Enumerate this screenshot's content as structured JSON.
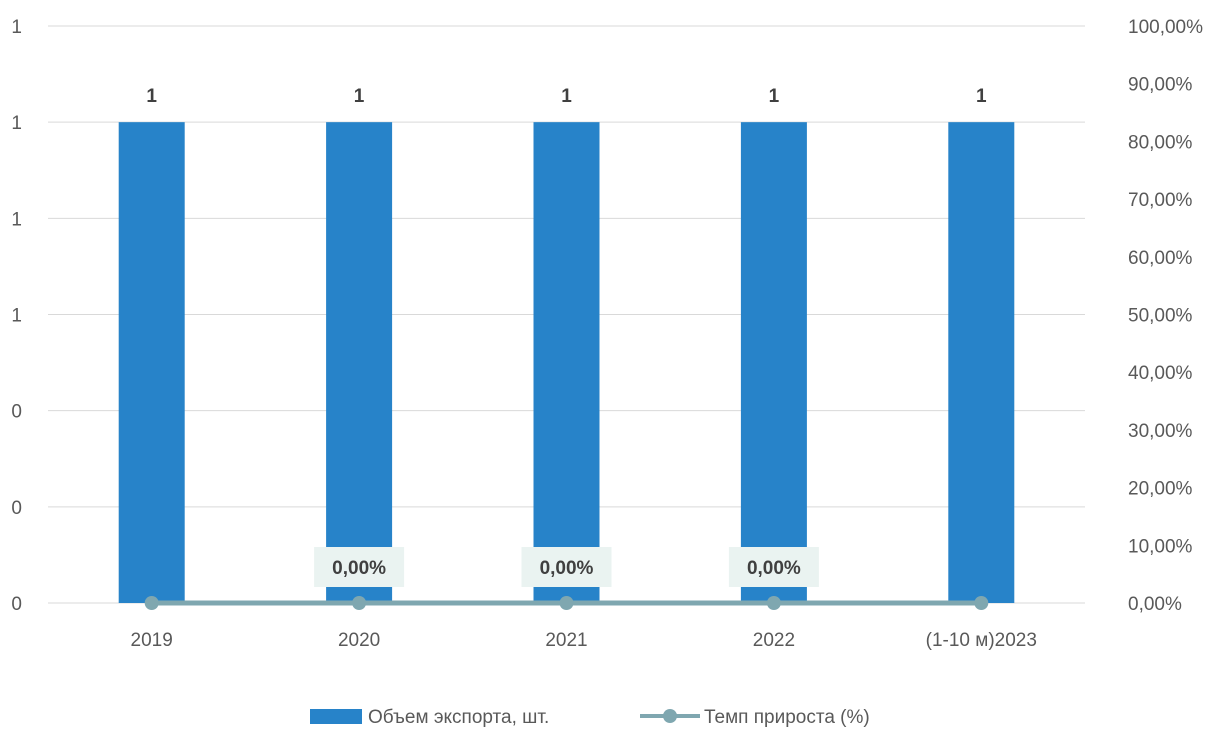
{
  "chart_data": {
    "type": "bar",
    "categories": [
      "2019",
      "2020",
      "2021",
      "2022",
      "(1-10 м)2023"
    ],
    "series": [
      {
        "name": "Объем экспорта, шт.",
        "type": "bar",
        "axis": "left",
        "values": [
          1,
          1,
          1,
          1,
          1
        ],
        "data_labels": [
          "1",
          "1",
          "1",
          "1",
          "1"
        ],
        "color": "#2783C9"
      },
      {
        "name": "Темп прироста (%)",
        "type": "line",
        "axis": "right",
        "values": [
          0,
          0,
          0,
          0,
          0
        ],
        "data_labels": [
          "",
          "0,00%",
          "0,00%",
          "0,00%",
          ""
        ],
        "color": "#7FA7B0"
      }
    ],
    "y_left": {
      "range": [
        0,
        1.2
      ],
      "ticks": [
        0,
        0.2,
        0.4,
        0.6,
        0.8,
        1.0,
        1.2
      ],
      "tick_labels": [
        "0",
        "0",
        "0",
        "1",
        "1",
        "1",
        "1"
      ]
    },
    "y_right": {
      "range": [
        0,
        100
      ],
      "ticks": [
        0,
        10,
        20,
        30,
        40,
        50,
        60,
        70,
        80,
        90,
        100
      ],
      "tick_labels": [
        "0,00%",
        "10,00%",
        "20,00%",
        "30,00%",
        "40,00%",
        "50,00%",
        "60,00%",
        "70,00%",
        "80,00%",
        "90,00%",
        "100,00%"
      ]
    },
    "grid": true,
    "legend_position": "bottom",
    "title": "",
    "xlabel": "",
    "ylabel": ""
  }
}
